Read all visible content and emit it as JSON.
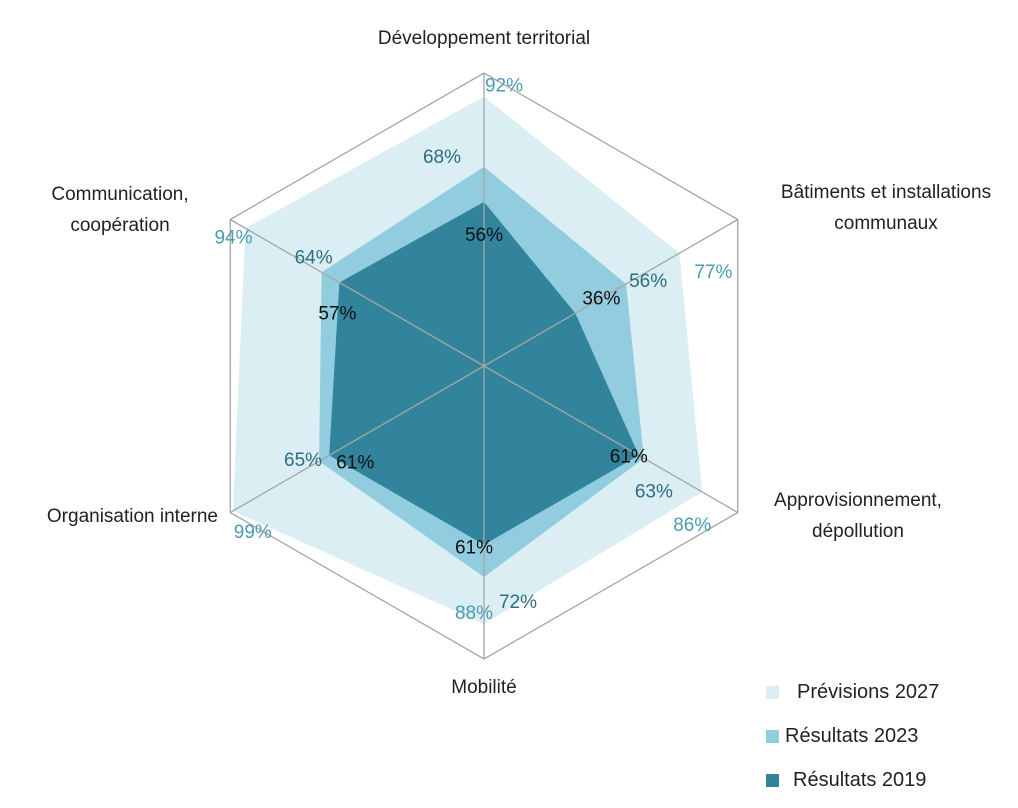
{
  "chart_data": {
    "type": "radar",
    "title": "",
    "categories": [
      "Développement territorial",
      "Bâtiments et installations communaux",
      "Approvisionnement, dépollution",
      "Mobilité",
      "Organisation interne",
      "Communication, coopération"
    ],
    "category_lines": [
      [
        "Développement territorial"
      ],
      [
        "Bâtiments et installations",
        "communaux"
      ],
      [
        "Approvisionnement,",
        "dépollution"
      ],
      [
        "Mobilité"
      ],
      [
        "Organisation interne"
      ],
      [
        "Communication,",
        "coopération"
      ]
    ],
    "range": [
      0,
      100
    ],
    "unit": "%",
    "grid": "outer hexagon with spokes",
    "legend_position": "bottom-right",
    "series": [
      {
        "name": "Prévisions 2027",
        "color": "#daeef4",
        "label_color": "#4a9bb3",
        "values": [
          92,
          77,
          86,
          88,
          99,
          94
        ]
      },
      {
        "name": "Résultats 2023",
        "color": "#92cddf",
        "label_color": "#2f6d80",
        "values": [
          68,
          56,
          63,
          72,
          65,
          64
        ]
      },
      {
        "name": "Résultats 2019",
        "color": "#31849b",
        "label_color": "#111111",
        "values": [
          56,
          36,
          61,
          61,
          61,
          57
        ]
      }
    ]
  },
  "legend": {
    "items": [
      {
        "label": "Prévisions 2027",
        "color": "#daeef4"
      },
      {
        "label": "Résultats 2023",
        "color": "#92cddf"
      },
      {
        "label": "Résultats 2019",
        "color": "#31849b"
      }
    ]
  }
}
